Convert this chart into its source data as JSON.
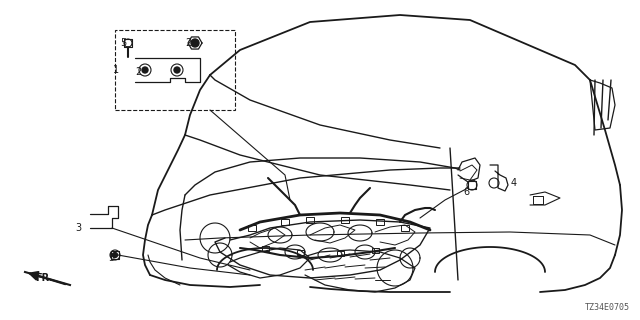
{
  "diagram_code": "TZ34E0705",
  "background_color": "#ffffff",
  "line_color": "#1a1a1a",
  "fig_width": 6.4,
  "fig_height": 3.2,
  "dpi": 100
}
